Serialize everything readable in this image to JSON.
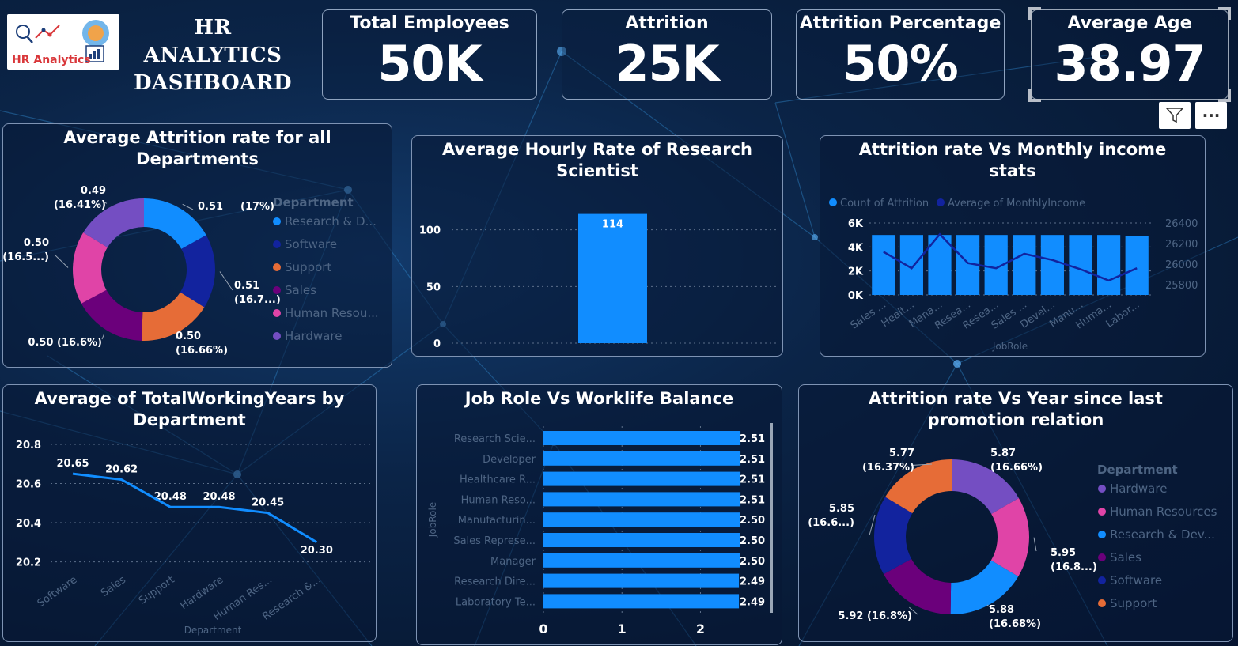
{
  "header": {
    "logo_text": "HR Analytics",
    "title_line1": "HR ANALYTICS",
    "title_line2": "DASHBOARD"
  },
  "kpis": [
    {
      "label": "Total Employees",
      "value": "50K"
    },
    {
      "label": "Attrition",
      "value": "25K"
    },
    {
      "label": "Attrition Percentage",
      "value": "50%"
    },
    {
      "label": "Average Age",
      "value": "38.97"
    }
  ],
  "controls": {
    "filter_icon": "filter-icon",
    "more_icon": "more-options-icon",
    "more_label": "···"
  },
  "colors": {
    "accent_blue": "#118DFF",
    "dark_blue": "#12239E",
    "orange": "#E66C37",
    "purple": "#6B007B",
    "pink": "#E044A7",
    "violet": "#744EC2"
  },
  "chart_data": [
    {
      "id": "avg-attrition-dept",
      "type": "pie",
      "title": "Average Attrition rate for all Departments",
      "legend_title": "Department",
      "legend_placement": "right",
      "legend": [
        "Research & D...",
        "Software",
        "Support",
        "Sales",
        "Human Resou...",
        "Hardware"
      ],
      "slices": [
        {
          "name": "Research & Development",
          "value": 0.51,
          "label_value": "0.51",
          "label_pct": "(17%)",
          "color": "#118DFF"
        },
        {
          "name": "Software",
          "value": 0.51,
          "label_value": "0.51",
          "label_pct": "(16.7...)",
          "color": "#12239E"
        },
        {
          "name": "Support",
          "value": 0.5,
          "label_value": "0.50",
          "label_pct": "(16.66%)",
          "color": "#E66C37"
        },
        {
          "name": "Sales",
          "value": 0.5,
          "label_value": "0.50 (16.6%)",
          "label_pct": "",
          "color": "#6B007B"
        },
        {
          "name": "Human Resources",
          "value": 0.5,
          "label_value": "0.50",
          "label_pct": "(16.5...)",
          "color": "#E044A7"
        },
        {
          "name": "Hardware",
          "value": 0.49,
          "label_value": "0.49",
          "label_pct": "(16.41%)",
          "color": "#744EC2"
        }
      ]
    },
    {
      "id": "hourly-rate-scientist",
      "type": "bar",
      "title": "Average Hourly Rate of Research Scientist",
      "categories": [
        ""
      ],
      "values": [
        114
      ],
      "data_labels": [
        "114"
      ],
      "yticks": [
        "0",
        "50",
        "100"
      ],
      "ylim": [
        0,
        120
      ]
    },
    {
      "id": "attrition-vs-income",
      "type": "bar",
      "title": "Attrition rate Vs Monthly income stats",
      "legend_placement": "top-left",
      "legend": [
        "Count of Attrition",
        "Average of MonthlyIncome"
      ],
      "xlabel": "JobRole",
      "categories": [
        "Sales ...",
        "Healt...",
        "Mana...",
        "Resea...",
        "Resea...",
        "Sales ...",
        "Devel...",
        "Manu...",
        "Huma...",
        "Labor..."
      ],
      "bar_values": [
        5000,
        5000,
        5000,
        5000,
        5000,
        5000,
        5000,
        5000,
        5000,
        4900
      ],
      "line_values": [
        26120,
        25960,
        26290,
        26010,
        25960,
        26100,
        26040,
        25950,
        25840,
        25960
      ],
      "left_ticks": [
        "0K",
        "2K",
        "4K",
        "6K"
      ],
      "left_lim": [
        0,
        6000
      ],
      "right_ticks": [
        "25800",
        "26000",
        "26200",
        "26400"
      ],
      "right_lim": [
        25700,
        26400
      ]
    },
    {
      "id": "working-years-dept",
      "type": "line",
      "title": "Average of TotalWorkingYears by Department",
      "xlabel": "Department",
      "categories": [
        "Software",
        "Sales",
        "Support",
        "Hardware",
        "Human Res...",
        "Research &..."
      ],
      "values": [
        20.65,
        20.62,
        20.48,
        20.48,
        20.45,
        20.3
      ],
      "data_labels": [
        "20.65",
        "20.62",
        "20.48",
        "20.48",
        "20.45",
        "20.30"
      ],
      "yticks": [
        "20.2",
        "20.4",
        "20.6",
        "20.8"
      ],
      "ylim": [
        20.15,
        20.82
      ]
    },
    {
      "id": "jobrole-worklife",
      "type": "bar",
      "orientation": "horizontal",
      "title": "Job Role Vs Worklife Balance",
      "ylabel": "JobRole",
      "categories": [
        "Research Scie...",
        "Developer",
        "Healthcare R...",
        "Human Reso...",
        "Manufacturin...",
        "Sales Represe...",
        "Manager",
        "Research Dire...",
        "Laboratory Te..."
      ],
      "values": [
        2.51,
        2.51,
        2.51,
        2.51,
        2.5,
        2.5,
        2.5,
        2.49,
        2.49
      ],
      "data_labels": [
        "2.51",
        "2.51",
        "2.51",
        "2.51",
        "2.50",
        "2.50",
        "2.50",
        "2.49",
        "2.49"
      ],
      "xticks": [
        "0",
        "1",
        "2"
      ],
      "xlim": [
        0,
        2.6
      ]
    },
    {
      "id": "attrition-promotion",
      "type": "pie",
      "title": "Attrition rate Vs Year since last promotion relation",
      "legend_title": "Department",
      "legend_placement": "right",
      "legend": [
        "Hardware",
        "Human Resources",
        "Research & Dev...",
        "Sales",
        "Software",
        "Support"
      ],
      "slices": [
        {
          "name": "Hardware",
          "value": 5.87,
          "label_value": "5.87",
          "label_pct": "(16.66%)",
          "color": "#744EC2"
        },
        {
          "name": "Human Resources",
          "value": 5.95,
          "label_value": "5.95",
          "label_pct": "(16.8...)",
          "color": "#E044A7"
        },
        {
          "name": "Research & Development",
          "value": 5.88,
          "label_value": "5.88",
          "label_pct": "(16.68%)",
          "color": "#118DFF"
        },
        {
          "name": "Sales",
          "value": 5.92,
          "label_value": "5.92 (16.8%)",
          "label_pct": "",
          "color": "#6B007B"
        },
        {
          "name": "Software",
          "value": 5.85,
          "label_value": "5.85",
          "label_pct": "(16.6...)",
          "color": "#12239E"
        },
        {
          "name": "Support",
          "value": 5.77,
          "label_value": "5.77",
          "label_pct": "(16.37%)",
          "color": "#E66C37"
        }
      ]
    }
  ]
}
